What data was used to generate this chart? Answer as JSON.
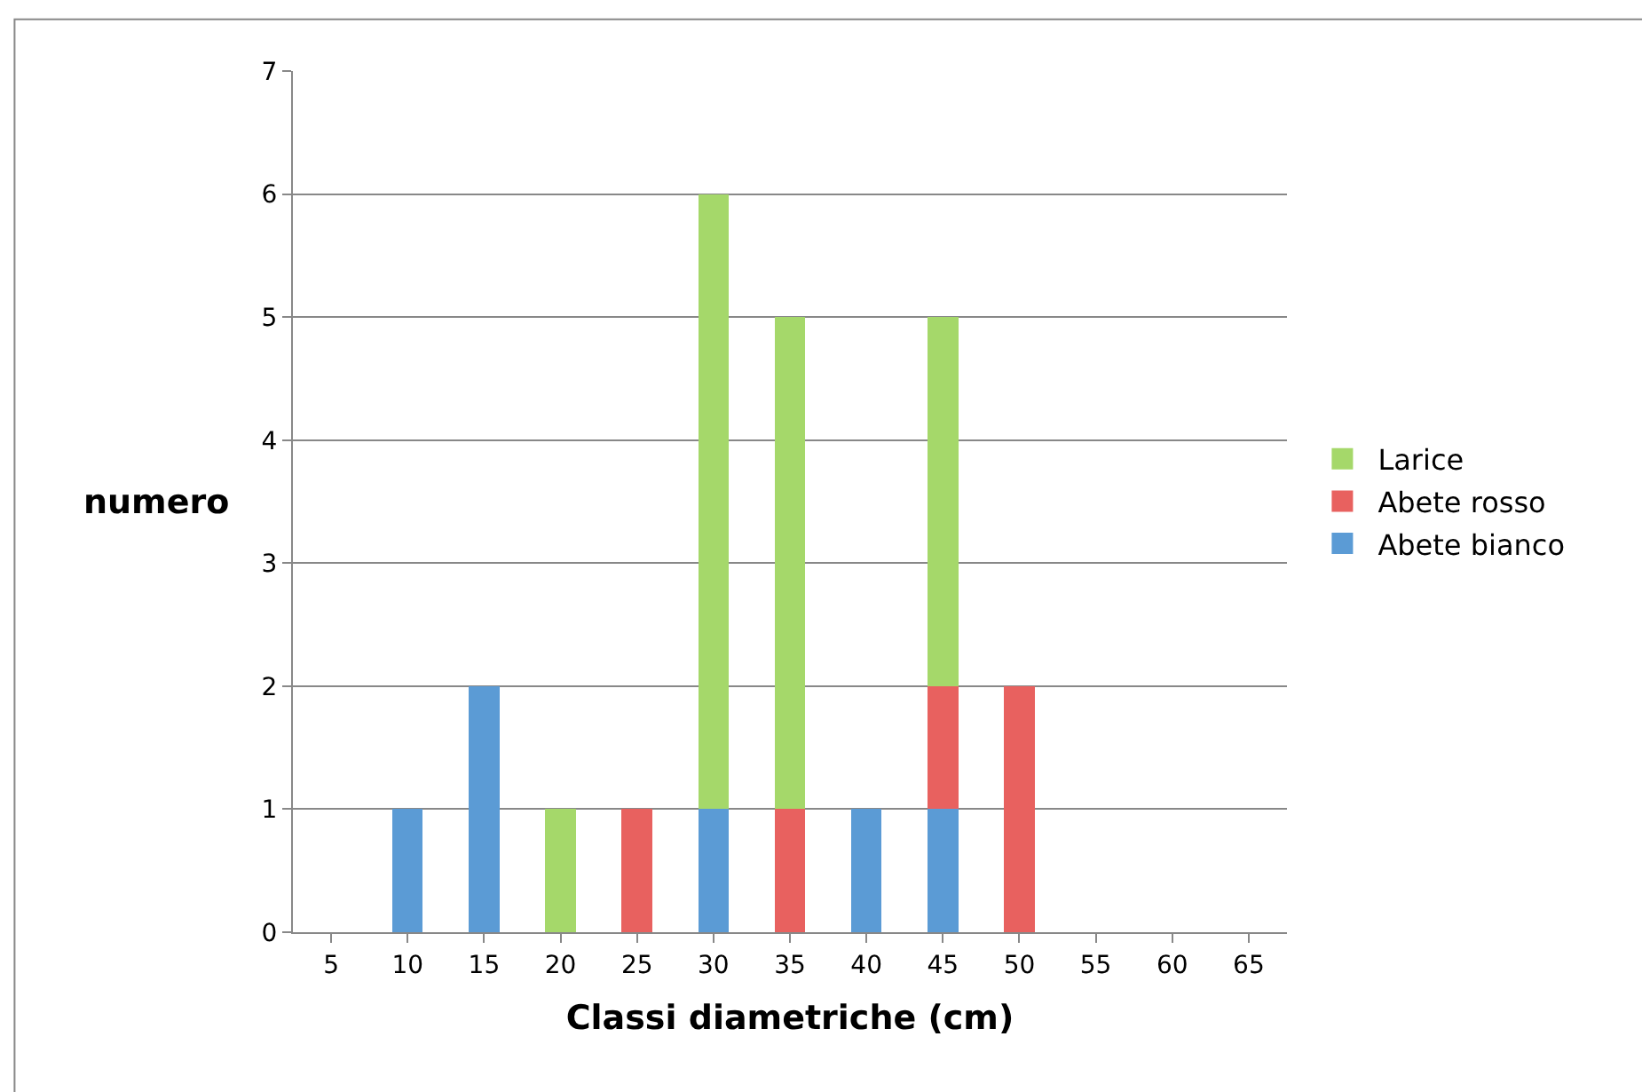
{
  "chart_data": {
    "type": "bar",
    "stacked": true,
    "xlabel": "Classi diametriche (cm)",
    "ylabel": "numero",
    "categories": [
      "5",
      "10",
      "15",
      "20",
      "25",
      "30",
      "35",
      "40",
      "45",
      "50",
      "55",
      "60",
      "65"
    ],
    "series": [
      {
        "name": "Abete bianco",
        "color": "#5b9bd5",
        "values": [
          null,
          1,
          2,
          null,
          null,
          1,
          null,
          1,
          1,
          null,
          null,
          null,
          null
        ]
      },
      {
        "name": "Abete rosso",
        "color": "#e8615f",
        "values": [
          null,
          null,
          null,
          null,
          1,
          null,
          1,
          null,
          1,
          2,
          null,
          null,
          null
        ]
      },
      {
        "name": "Larice",
        "color": "#a5d86a",
        "values": [
          null,
          null,
          null,
          1,
          null,
          5,
          4,
          null,
          3,
          null,
          null,
          null,
          null
        ]
      }
    ],
    "ylim": [
      0,
      7
    ],
    "yticks": [
      0,
      1,
      2,
      3,
      4,
      5,
      6,
      7
    ],
    "grid": "y",
    "legend": "right"
  }
}
